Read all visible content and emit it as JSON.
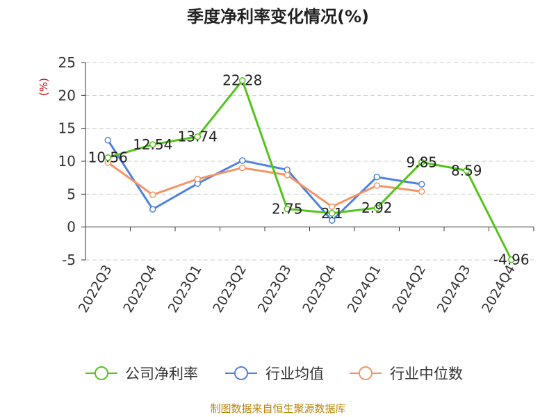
{
  "chart_data": {
    "type": "line",
    "title": "季度净利率变化情况(%)",
    "ylabel": "(%)",
    "xlabel": "",
    "categories": [
      "2022Q3",
      "2022Q4",
      "2023Q1",
      "2023Q2",
      "2023Q3",
      "2023Q4",
      "2024Q1",
      "2024Q2",
      "2024Q3",
      "2024Q4"
    ],
    "ylim": [
      -5,
      25
    ],
    "yticks": [
      "-5",
      "0",
      "5",
      "10",
      "15",
      "20",
      "25"
    ],
    "grid": "horizontal dashed",
    "legend_position": "bottom",
    "series": [
      {
        "name": "公司净利率",
        "color": "#52c41a",
        "values": [
          10.56,
          12.54,
          13.74,
          22.28,
          2.75,
          2.1,
          2.92,
          9.85,
          8.59,
          -4.96
        ],
        "labels": [
          "10.56",
          "12.54",
          "13.74",
          "22.28",
          "2.75",
          "2.1",
          "2.92",
          "9.85",
          "8.59",
          "-4.96"
        ]
      },
      {
        "name": "行业均值",
        "color": "#4f81e0",
        "values": [
          13.2,
          2.7,
          6.6,
          10.1,
          8.7,
          1.0,
          7.6,
          6.5,
          null,
          null
        ]
      },
      {
        "name": "行业中位数",
        "color": "#f59464",
        "values": [
          9.8,
          4.9,
          7.3,
          9.0,
          7.9,
          3.1,
          6.3,
          5.4,
          null,
          null
        ]
      }
    ],
    "source": "制图数据来自恒生聚源数据库"
  }
}
